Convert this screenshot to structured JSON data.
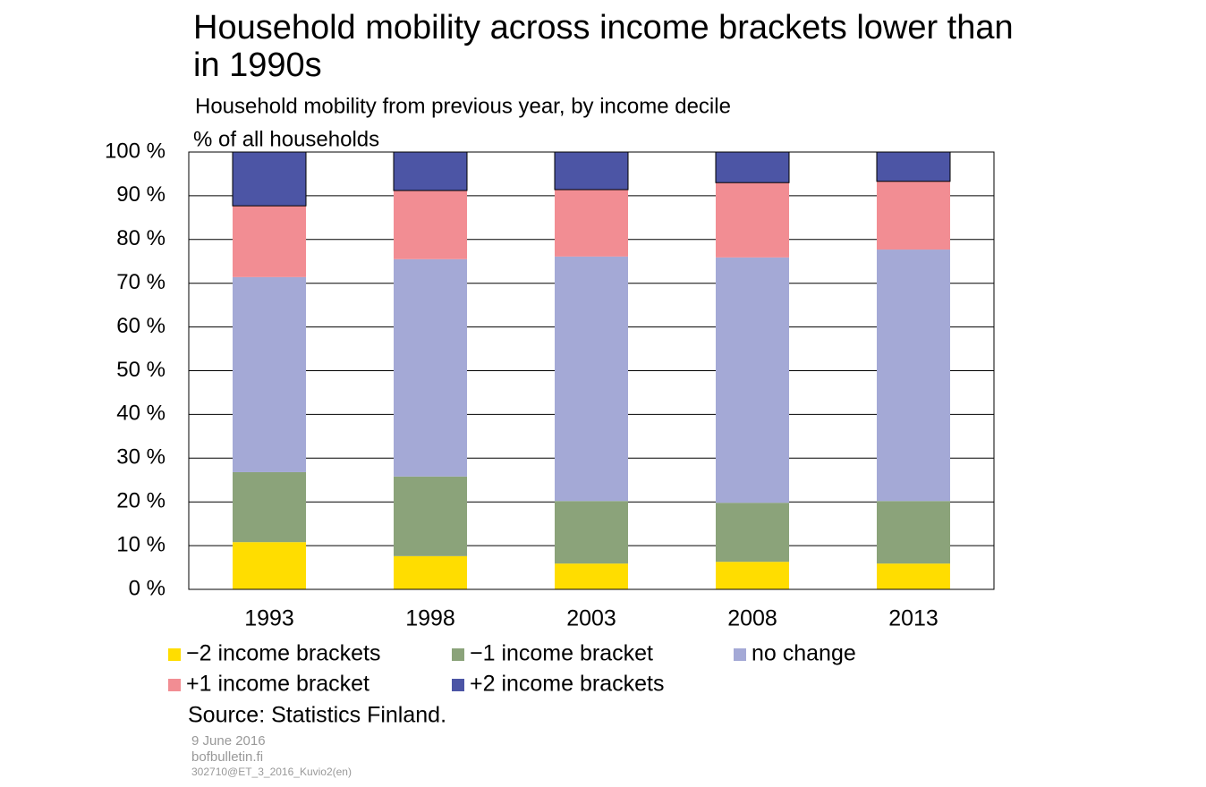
{
  "chart_data": {
    "type": "stacked_bar",
    "title": "Household mobility across income brackets lower than in 1990s",
    "subtitle": "Household mobility from previous year, by income decile",
    "y_axis_label": "% of all households",
    "categories": [
      "1993",
      "1998",
      "2003",
      "2008",
      "2013"
    ],
    "series": [
      {
        "name": "−2 income brackets",
        "color": "#FFDD00",
        "values": [
          10.8,
          7.6,
          5.9,
          6.3,
          5.9
        ]
      },
      {
        "name": "−1 income bracket",
        "color": "#8BA37A",
        "values": [
          16.0,
          18.2,
          14.3,
          13.5,
          14.3
        ]
      },
      {
        "name": "no change",
        "color": "#A4A9D6",
        "values": [
          44.6,
          49.7,
          55.9,
          56.1,
          57.5
        ]
      },
      {
        "name": "+1 income bracket",
        "color": "#F28D93",
        "values": [
          16.3,
          15.7,
          15.3,
          17.1,
          15.6
        ]
      },
      {
        "name": "+2 income brackets",
        "color": "#4C55A5",
        "values": [
          12.3,
          8.8,
          8.6,
          7.0,
          6.7
        ]
      }
    ],
    "ylim": [
      0,
      100
    ],
    "yticks": [
      {
        "value": 0,
        "label": "0 %"
      },
      {
        "value": 10,
        "label": "10 %"
      },
      {
        "value": 20,
        "label": "20 %"
      },
      {
        "value": 30,
        "label": "30 %"
      },
      {
        "value": 40,
        "label": "40 %"
      },
      {
        "value": 50,
        "label": "50 %"
      },
      {
        "value": 60,
        "label": "60 %"
      },
      {
        "value": 70,
        "label": "70 %"
      },
      {
        "value": 80,
        "label": "80 %"
      },
      {
        "value": 90,
        "label": "90 %"
      },
      {
        "value": 100,
        "label": "100 %"
      }
    ],
    "grid": true,
    "source": "Source: Statistics Finland.",
    "date": "9 June 2016",
    "site": "bofbulletin.fi",
    "code": "302710@ET_3_2016_Kuvio2(en)"
  }
}
